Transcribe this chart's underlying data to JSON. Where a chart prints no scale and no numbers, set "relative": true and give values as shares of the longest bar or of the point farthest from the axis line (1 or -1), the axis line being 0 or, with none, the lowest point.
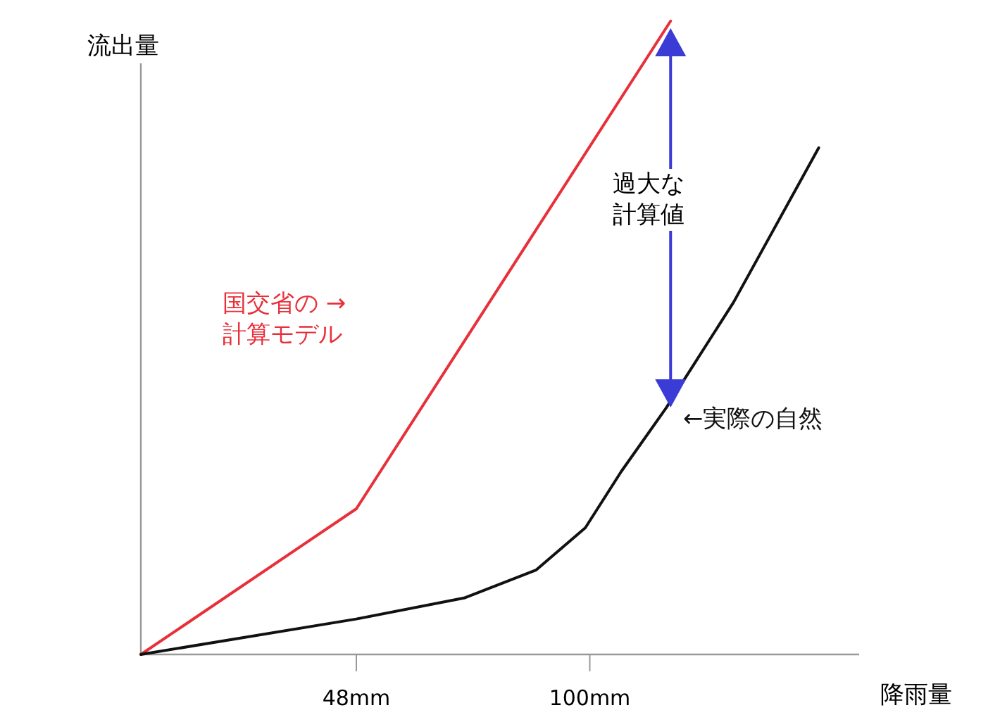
{
  "chart_data": {
    "type": "line",
    "relative": true,
    "xlabel": "降雨量",
    "ylabel": "流出量",
    "xlim": [
      0,
      160
    ],
    "xticks": [
      {
        "value": 48,
        "label": "48mm"
      },
      {
        "value": 100,
        "label": "100mm"
      }
    ],
    "legend": false,
    "marker": "none",
    "line_style": "solid",
    "series": [
      {
        "name": "国交省の → 計算モデル",
        "color": "#e8303a",
        "x": [
          0,
          48,
          118
        ],
        "values": [
          0,
          0.23,
          1
        ]
      },
      {
        "name": "←実際の自然",
        "color": "#111111",
        "x": [
          0,
          48,
          72,
          88,
          99,
          107,
          117,
          132,
          151
        ],
        "values": [
          0,
          0.056,
          0.089,
          0.133,
          0.2,
          0.289,
          0.389,
          0.556,
          0.8
        ]
      }
    ],
    "annotations": [
      "過大な計算値"
    ]
  }
}
